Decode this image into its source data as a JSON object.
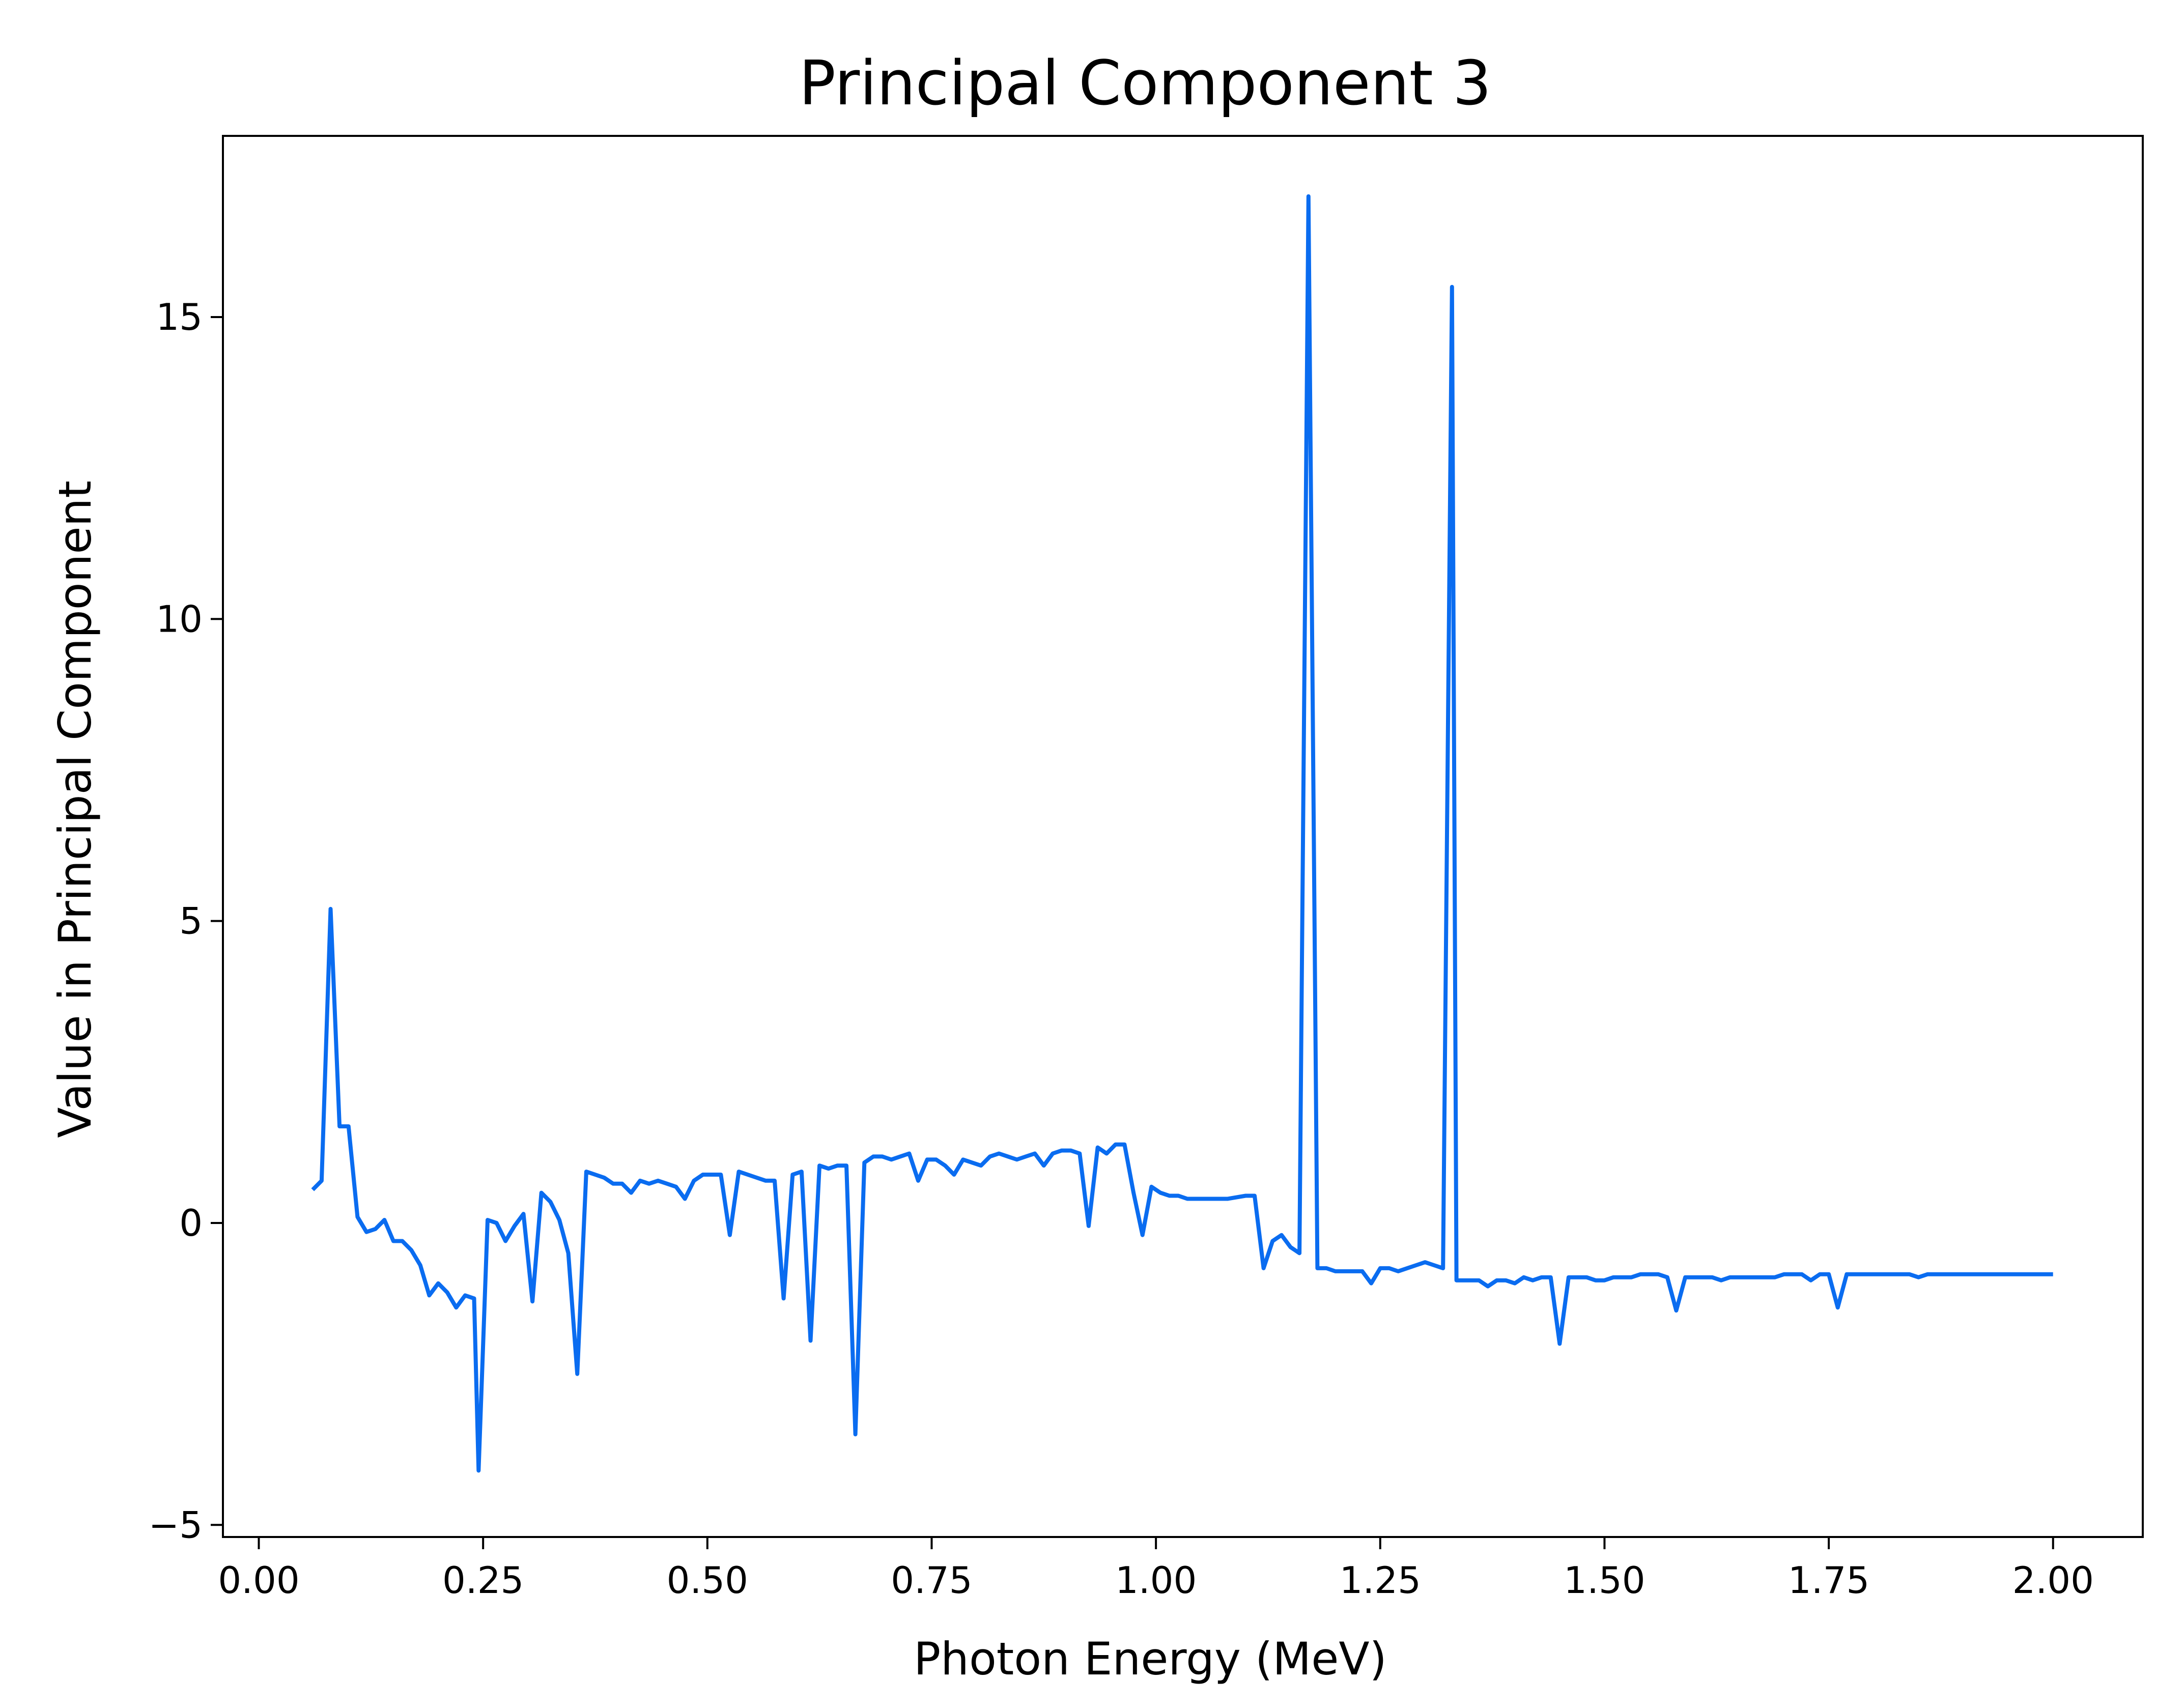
{
  "chart_data": {
    "type": "line",
    "title": "Principal Component 3",
    "xlabel": "Photon Energy (MeV)",
    "ylabel": "Value in Principal Component",
    "xlim": [
      -0.04,
      2.1
    ],
    "ylim": [
      -5.2,
      18.0
    ],
    "grid": false,
    "legend": "none",
    "line_color": "#0a6cf0",
    "x_ticks": [
      {
        "value": 0.0,
        "label": "0.00"
      },
      {
        "value": 0.25,
        "label": "0.25"
      },
      {
        "value": 0.5,
        "label": "0.50"
      },
      {
        "value": 0.75,
        "label": "0.75"
      },
      {
        "value": 1.0,
        "label": "1.00"
      },
      {
        "value": 1.25,
        "label": "1.25"
      },
      {
        "value": 1.5,
        "label": "1.50"
      },
      {
        "value": 1.75,
        "label": "1.75"
      },
      {
        "value": 2.0,
        "label": "2.00"
      }
    ],
    "y_ticks": [
      {
        "value": -5,
        "label": "−5"
      },
      {
        "value": 0,
        "label": "0"
      },
      {
        "value": 5,
        "label": "5"
      },
      {
        "value": 10,
        "label": "10"
      },
      {
        "value": 15,
        "label": "15"
      }
    ],
    "series": [
      {
        "x": [
          0.06,
          0.07,
          0.08,
          0.09,
          0.1,
          0.11,
          0.12,
          0.13,
          0.14,
          0.15,
          0.16,
          0.17,
          0.18,
          0.19,
          0.2,
          0.21,
          0.22,
          0.23,
          0.24,
          0.245,
          0.255,
          0.265,
          0.275,
          0.285,
          0.295,
          0.305,
          0.315,
          0.325,
          0.335,
          0.345,
          0.355,
          0.365,
          0.375,
          0.385,
          0.395,
          0.405,
          0.415,
          0.425,
          0.435,
          0.445,
          0.455,
          0.465,
          0.475,
          0.485,
          0.495,
          0.505,
          0.515,
          0.525,
          0.535,
          0.545,
          0.555,
          0.565,
          0.575,
          0.585,
          0.595,
          0.605,
          0.615,
          0.625,
          0.635,
          0.645,
          0.655,
          0.665,
          0.675,
          0.685,
          0.695,
          0.705,
          0.715,
          0.725,
          0.735,
          0.745,
          0.755,
          0.765,
          0.775,
          0.785,
          0.795,
          0.805,
          0.815,
          0.825,
          0.835,
          0.845,
          0.855,
          0.865,
          0.875,
          0.885,
          0.895,
          0.905,
          0.915,
          0.925,
          0.935,
          0.945,
          0.955,
          0.965,
          0.975,
          0.985,
          0.995,
          1.005,
          1.015,
          1.025,
          1.035,
          1.045,
          1.06,
          1.08,
          1.1,
          1.11,
          1.12,
          1.13,
          1.14,
          1.15,
          1.16,
          1.17,
          1.18,
          1.19,
          1.2,
          1.21,
          1.22,
          1.23,
          1.24,
          1.25,
          1.26,
          1.27,
          1.28,
          1.29,
          1.3,
          1.31,
          1.32,
          1.33,
          1.335,
          1.34,
          1.35,
          1.36,
          1.37,
          1.38,
          1.39,
          1.4,
          1.41,
          1.42,
          1.43,
          1.44,
          1.45,
          1.46,
          1.47,
          1.48,
          1.49,
          1.5,
          1.51,
          1.52,
          1.53,
          1.54,
          1.55,
          1.56,
          1.57,
          1.58,
          1.59,
          1.6,
          1.61,
          1.62,
          1.63,
          1.64,
          1.65,
          1.66,
          1.67,
          1.68,
          1.69,
          1.7,
          1.71,
          1.72,
          1.73,
          1.74,
          1.75,
          1.76,
          1.77,
          1.78,
          1.79,
          1.8,
          1.81,
          1.82,
          1.83,
          1.84,
          1.85,
          1.86,
          1.87,
          1.88,
          1.9,
          1.92,
          1.94,
          1.96,
          1.98,
          2.0
        ],
        "values": [
          0.55,
          0.7,
          5.2,
          1.6,
          1.6,
          0.1,
          -0.15,
          -0.1,
          0.05,
          -0.3,
          -0.3,
          -0.45,
          -0.7,
          -1.2,
          -1.0,
          -1.15,
          -1.4,
          -1.2,
          -1.25,
          -4.1,
          0.05,
          0.0,
          -0.3,
          -0.05,
          0.15,
          -1.3,
          0.5,
          0.35,
          0.05,
          -0.5,
          -2.5,
          0.85,
          0.8,
          0.75,
          0.65,
          0.65,
          0.5,
          0.7,
          0.65,
          0.7,
          0.65,
          0.6,
          0.4,
          0.7,
          0.8,
          0.8,
          0.8,
          -0.2,
          0.85,
          0.8,
          0.75,
          0.7,
          0.7,
          -1.25,
          0.8,
          0.85,
          -1.95,
          0.95,
          0.9,
          0.95,
          0.95,
          -3.5,
          1.0,
          1.1,
          1.1,
          1.05,
          1.1,
          1.15,
          0.7,
          1.05,
          1.05,
          0.95,
          0.8,
          1.05,
          1.0,
          0.95,
          1.1,
          1.15,
          1.1,
          1.05,
          1.1,
          1.15,
          0.95,
          1.15,
          1.2,
          1.2,
          1.15,
          -0.05,
          1.25,
          1.15,
          1.3,
          1.3,
          0.5,
          -0.2,
          0.6,
          0.5,
          0.45,
          0.45,
          0.4,
          0.4,
          0.4,
          0.4,
          0.45,
          0.45,
          -0.75,
          -0.3,
          -0.2,
          -0.4,
          -0.5,
          17.0,
          -0.75,
          -0.75,
          -0.8,
          -0.8,
          -0.8,
          -0.8,
          -1.0,
          -0.75,
          -0.75,
          -0.8,
          -0.75,
          -0.7,
          -0.65,
          -0.7,
          -0.75,
          15.5,
          -0.95,
          -0.95,
          -0.95,
          -0.95,
          -1.05,
          -0.95,
          -0.95,
          -1.0,
          -0.9,
          -0.95,
          -0.9,
          -0.9,
          -2.0,
          -0.9,
          -0.9,
          -0.9,
          -0.95,
          -0.95,
          -0.9,
          -0.9,
          -0.9,
          -0.85,
          -0.85,
          -0.85,
          -0.9,
          -1.45,
          -0.9,
          -0.9,
          -0.9,
          -0.9,
          -0.95,
          -0.9,
          -0.9,
          -0.9,
          -0.9,
          -0.9,
          -0.9,
          -0.85,
          -0.85,
          -0.85,
          -0.95,
          -0.85,
          -0.85,
          -1.4,
          -0.85,
          -0.85,
          -0.85,
          -0.85,
          -0.85,
          -0.85,
          -0.85,
          -0.85,
          -0.9,
          -0.85,
          -0.85,
          -0.85,
          -0.85,
          -0.85,
          -0.85,
          -0.85,
          -0.85,
          -0.85
        ]
      }
    ]
  }
}
